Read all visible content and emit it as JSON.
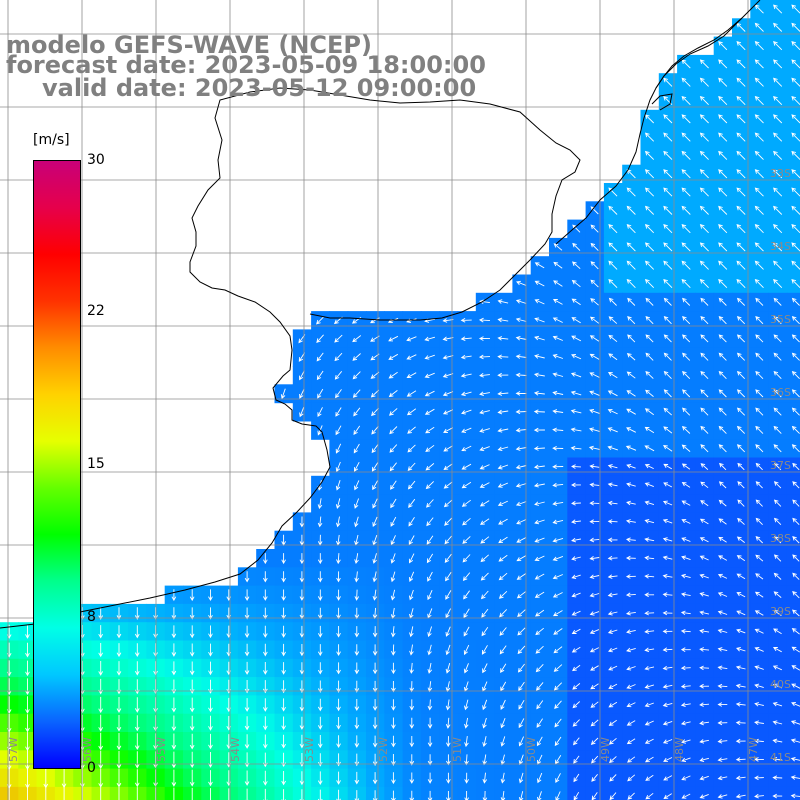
{
  "titles": {
    "line1": "modelo GEFS-WAVE (NCEP)",
    "line2": "forecast date: 2023-05-09 18:00:00",
    "line3": "valid date: 2023-05-12 09:00:00"
  },
  "colorbar": {
    "unit": "[m/s]",
    "ticks": [
      "30",
      "22",
      "15",
      "8",
      "0"
    ],
    "colors": [
      "#0000ff",
      "#0a64ff",
      "#00c8ff",
      "#00ffe6",
      "#00ff8c",
      "#00ff00",
      "#64ff00",
      "#e6ff00",
      "#ffd200",
      "#ff8c00",
      "#ff3200",
      "#ff0000",
      "#e6004b",
      "#c80078"
    ]
  },
  "grid": {
    "lat_labels": [
      "33S",
      "34S",
      "35S",
      "36S",
      "37S",
      "38S",
      "39S",
      "40S",
      "41S"
    ],
    "lon_labels": [
      "57W",
      "56W",
      "55W",
      "54W",
      "53W",
      "52W",
      "51W",
      "50W",
      "49W",
      "48W",
      "47W"
    ]
  },
  "palette": {
    "land": "#ffffff",
    "coast": "#000000",
    "gridline": "#8c8c8c",
    "arrow": "#ffffff"
  }
}
